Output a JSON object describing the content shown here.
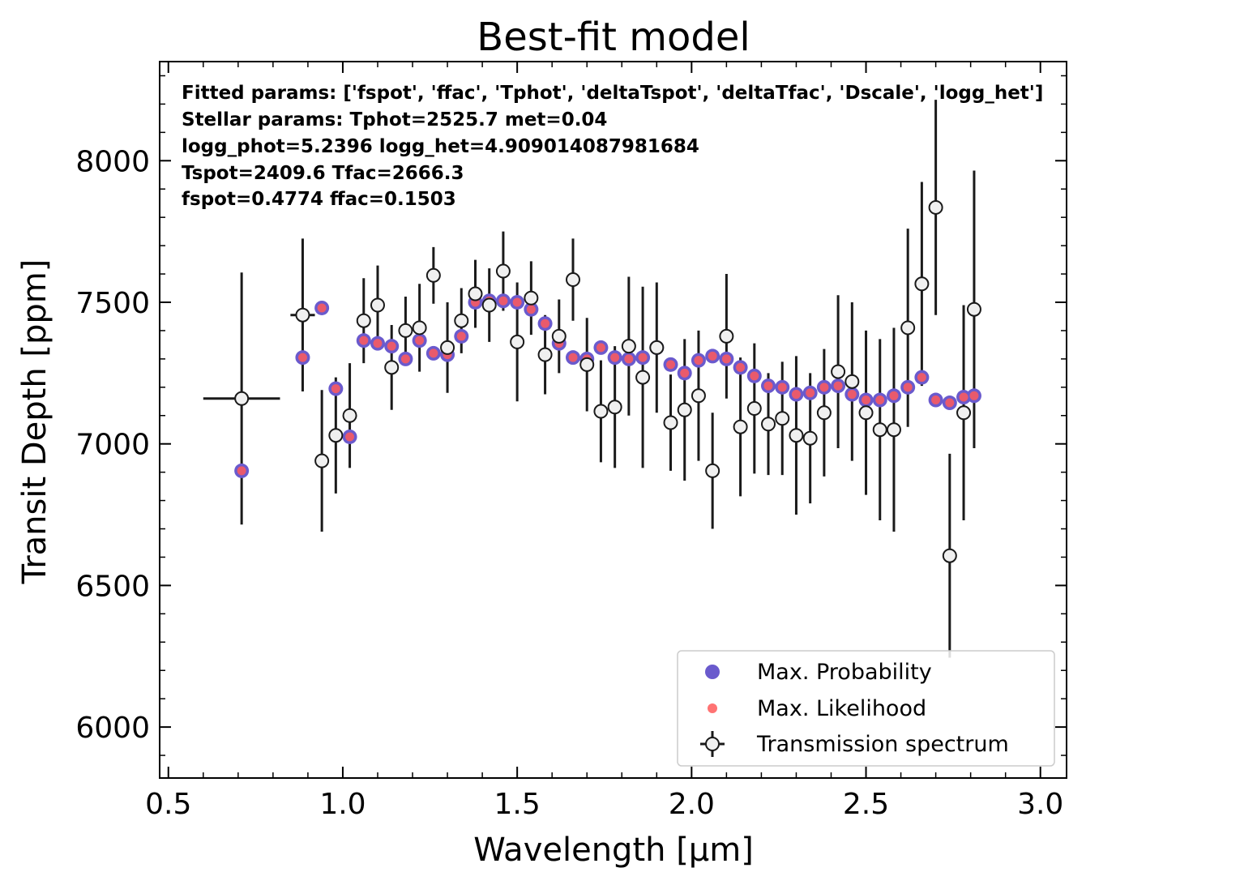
{
  "chart_data": {
    "type": "scatter",
    "title": "Best-fit model",
    "xlabel": "Wavelength [μm]",
    "ylabel": "Transit Depth [ppm]",
    "xlim": [
      0.475,
      3.075
    ],
    "ylim": [
      5820,
      8350
    ],
    "xticks": [
      "0.5",
      "1.0",
      "1.5",
      "2.0",
      "2.5",
      "3.0"
    ],
    "yticks": [
      "6000",
      "6500",
      "7000",
      "7500",
      "8000"
    ],
    "annotations": [
      "Fitted params: ['fspot', 'ffac', 'Tphot', 'deltaTspot', 'deltaTfac', 'Dscale', 'logg_het']",
      "Stellar params: Tphot=2525.7 met=0.04",
      "logg_phot=5.2396 logg_het=4.909014087981684",
      "Tspot=2409.6 Tfac=2666.3",
      "fspot=0.4774 ffac=0.1503"
    ],
    "legend": {
      "position": "lower right",
      "entries": [
        "Max. Probability",
        "Max. Likelihood",
        "Transmission spectrum"
      ]
    },
    "colors": {
      "max_probability": "#6a5acd",
      "max_likelihood": "#ff5a5a",
      "spectrum_face": "#f0f0f0",
      "spectrum_edge": "#1a1a1a"
    },
    "series": [
      {
        "name": "Transmission spectrum",
        "kind": "errorbar",
        "x": [
          0.71,
          0.885,
          0.94,
          0.98,
          1.02,
          1.06,
          1.1,
          1.14,
          1.18,
          1.22,
          1.26,
          1.3,
          1.34,
          1.38,
          1.42,
          1.46,
          1.5,
          1.54,
          1.58,
          1.62,
          1.66,
          1.7,
          1.74,
          1.78,
          1.82,
          1.86,
          1.9,
          1.94,
          1.98,
          2.02,
          2.06,
          2.1,
          2.14,
          2.18,
          2.22,
          2.26,
          2.3,
          2.34,
          2.38,
          2.42,
          2.46,
          2.5,
          2.54,
          2.58,
          2.62,
          2.66,
          2.7,
          2.74,
          2.78,
          2.81
        ],
        "y": [
          7160,
          7455,
          6940,
          7030,
          7100,
          7435,
          7490,
          7270,
          7400,
          7410,
          7595,
          7340,
          7435,
          7530,
          7490,
          7610,
          7360,
          7515,
          7315,
          7380,
          7580,
          7280,
          7115,
          7130,
          7345,
          7235,
          7340,
          7075,
          7120,
          7170,
          6905,
          7380,
          7060,
          7125,
          7070,
          7090,
          7030,
          7020,
          7110,
          7255,
          7220,
          7110,
          7050,
          7050,
          7410,
          7565,
          7835,
          6605,
          7110,
          7475
        ],
        "yerr": [
          445,
          270,
          250,
          205,
          185,
          150,
          140,
          150,
          120,
          155,
          100,
          160,
          115,
          120,
          130,
          140,
          210,
          130,
          140,
          130,
          145,
          165,
          180,
          215,
          245,
          320,
          230,
          170,
          250,
          230,
          205,
          220,
          245,
          230,
          180,
          200,
          280,
          230,
          225,
          270,
          280,
          290,
          320,
          360,
          350,
          360,
          380,
          360,
          380,
          490
        ],
        "xerr": [
          0.11,
          0.035,
          0,
          0,
          0,
          0,
          0,
          0,
          0,
          0,
          0,
          0,
          0,
          0,
          0,
          0,
          0,
          0,
          0,
          0,
          0,
          0,
          0,
          0,
          0,
          0,
          0,
          0,
          0,
          0,
          0,
          0,
          0,
          0,
          0,
          0,
          0,
          0,
          0,
          0,
          0,
          0,
          0,
          0,
          0,
          0,
          0,
          0,
          0,
          0
        ]
      },
      {
        "name": "Max. Probability",
        "kind": "points",
        "x": [
          0.71,
          0.885,
          0.94,
          0.98,
          1.02,
          1.06,
          1.1,
          1.14,
          1.18,
          1.22,
          1.26,
          1.3,
          1.34,
          1.38,
          1.42,
          1.46,
          1.5,
          1.54,
          1.58,
          1.62,
          1.66,
          1.7,
          1.74,
          1.78,
          1.82,
          1.86,
          1.9,
          1.94,
          1.98,
          2.02,
          2.06,
          2.1,
          2.14,
          2.18,
          2.22,
          2.26,
          2.3,
          2.34,
          2.38,
          2.42,
          2.46,
          2.5,
          2.54,
          2.58,
          2.62,
          2.66,
          2.7,
          2.74,
          2.78,
          2.81
        ],
        "y": [
          6905,
          7305,
          7480,
          7195,
          7025,
          7365,
          7355,
          7345,
          7300,
          7365,
          7320,
          7315,
          7380,
          7500,
          7505,
          7505,
          7500,
          7475,
          7425,
          7355,
          7305,
          7300,
          7340,
          7305,
          7300,
          7305,
          7340,
          7280,
          7250,
          7295,
          7310,
          7300,
          7270,
          7240,
          7205,
          7200,
          7175,
          7180,
          7200,
          7205,
          7175,
          7155,
          7155,
          7170,
          7200,
          7235,
          7155,
          7145,
          7165,
          7170
        ]
      },
      {
        "name": "Max. Likelihood",
        "kind": "points",
        "x": [
          0.71,
          0.885,
          0.94,
          0.98,
          1.02,
          1.06,
          1.1,
          1.14,
          1.18,
          1.22,
          1.26,
          1.3,
          1.34,
          1.38,
          1.42,
          1.46,
          1.5,
          1.54,
          1.58,
          1.62,
          1.66,
          1.7,
          1.74,
          1.78,
          1.82,
          1.86,
          1.9,
          1.94,
          1.98,
          2.02,
          2.06,
          2.1,
          2.14,
          2.18,
          2.22,
          2.26,
          2.3,
          2.34,
          2.38,
          2.42,
          2.46,
          2.5,
          2.54,
          2.58,
          2.62,
          2.66,
          2.7,
          2.74,
          2.78,
          2.81
        ],
        "y": [
          6905,
          7305,
          7480,
          7195,
          7025,
          7365,
          7355,
          7345,
          7300,
          7365,
          7320,
          7315,
          7380,
          7500,
          7505,
          7505,
          7500,
          7475,
          7425,
          7355,
          7305,
          7300,
          7340,
          7305,
          7300,
          7305,
          7340,
          7280,
          7250,
          7295,
          7310,
          7300,
          7270,
          7240,
          7205,
          7200,
          7175,
          7180,
          7200,
          7205,
          7175,
          7155,
          7155,
          7170,
          7200,
          7235,
          7155,
          7145,
          7165,
          7170
        ]
      }
    ]
  }
}
